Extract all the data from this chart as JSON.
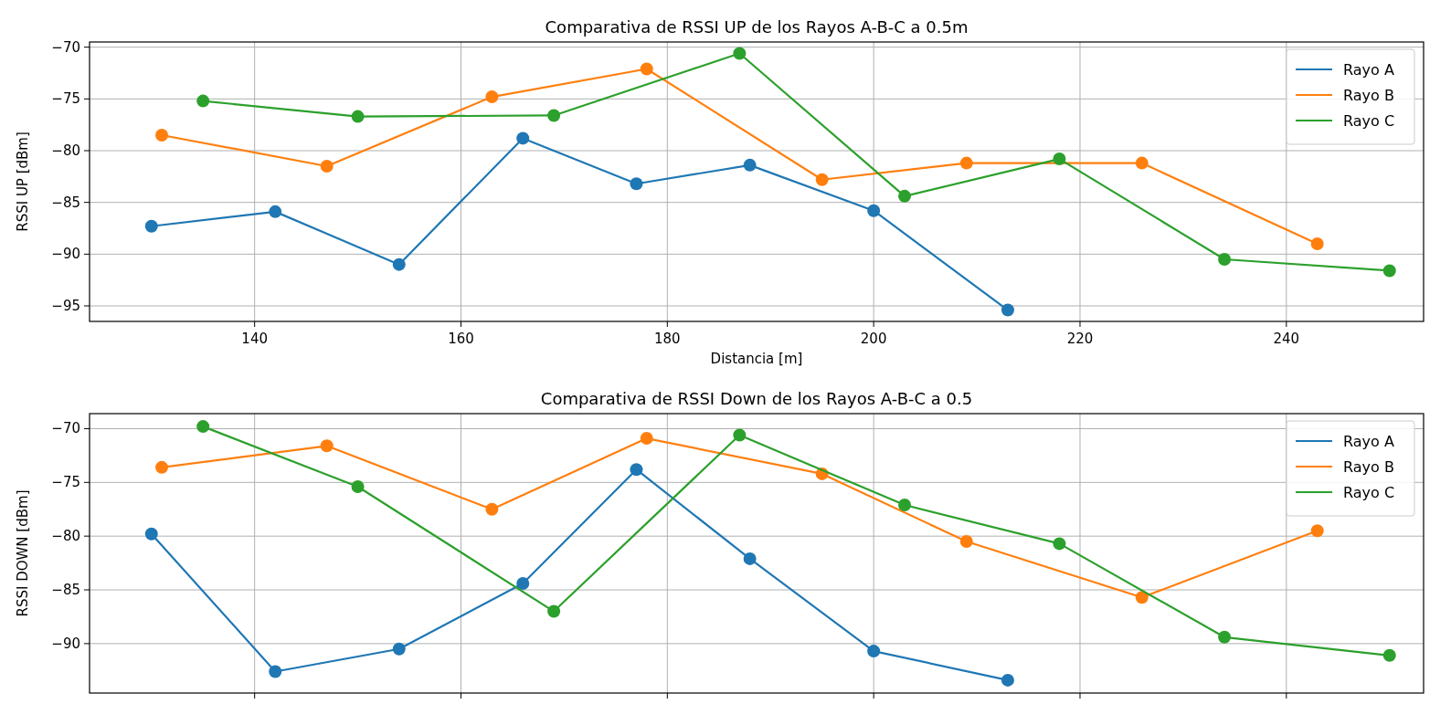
{
  "chart_data": [
    {
      "type": "line",
      "title": "Comparativa de RSSI UP de los Rayos A-B-C a 0.5m",
      "xlabel": "Distancia [m]",
      "ylabel": "RSSI UP [dBm]",
      "xlim": [
        124,
        253.3
      ],
      "xticks": [
        140,
        160,
        180,
        200,
        220,
        240
      ],
      "ylim": [
        -96.5,
        -69.5
      ],
      "yticks": [
        -95,
        -90,
        -85,
        -80,
        -75,
        -70
      ],
      "grid": true,
      "legend": "top right",
      "marker": "circle",
      "series": [
        {
          "name": "Rayo A",
          "color": "#1f77b4",
          "x": [
            130,
            142,
            154,
            166,
            177,
            188,
            200,
            213
          ],
          "values": [
            -87.3,
            -85.9,
            -91.0,
            -78.8,
            -83.2,
            -81.4,
            -85.8,
            -95.4
          ]
        },
        {
          "name": "Rayo B",
          "color": "#ff7f0e",
          "x": [
            131,
            147,
            163,
            178,
            195,
            209,
            226,
            243
          ],
          "values": [
            -78.5,
            -81.5,
            -74.8,
            -72.1,
            -82.8,
            -81.2,
            -81.2,
            -89.0
          ]
        },
        {
          "name": "Rayo C",
          "color": "#2ca02c",
          "x": [
            135,
            150,
            169,
            187,
            203,
            218,
            234,
            250
          ],
          "values": [
            -75.2,
            -76.7,
            -76.6,
            -70.6,
            -84.4,
            -80.8,
            -90.5,
            -91.6
          ]
        }
      ]
    },
    {
      "type": "line",
      "title": "Comparativa de RSSI Down de los Rayos A-B-C a 0.5",
      "ylabel": "RSSI DOWN [dBm]",
      "xlim": [
        124,
        253.3
      ],
      "xticks": [
        {
          "value": 140,
          "label": null
        },
        {
          "value": 160,
          "label": null
        },
        {
          "value": 180,
          "label": null
        },
        {
          "value": 200,
          "label": null
        },
        {
          "value": 220,
          "label": null
        },
        {
          "value": 240,
          "label": null
        }
      ],
      "ylim": [
        -94.6,
        -68.6
      ],
      "yticks": [
        -90,
        -85,
        -80,
        -75,
        -70
      ],
      "tick_labels": "y",
      "grid": true,
      "legend": "top right",
      "marker": "circle",
      "series": [
        {
          "name": "Rayo A",
          "color": "#1f77b4",
          "x": [
            130,
            142,
            154,
            166,
            177,
            188,
            200,
            213
          ],
          "values": [
            -79.8,
            -92.6,
            -90.5,
            -84.4,
            -73.8,
            -82.1,
            -90.7,
            -93.4
          ]
        },
        {
          "name": "Rayo B",
          "color": "#ff7f0e",
          "x": [
            131,
            147,
            163,
            178,
            195,
            209,
            226,
            243
          ],
          "values": [
            -73.6,
            -71.6,
            -77.5,
            -70.9,
            -74.2,
            -80.5,
            -85.7,
            -79.5
          ]
        },
        {
          "name": "Rayo C",
          "color": "#2ca02c",
          "x": [
            135,
            150,
            169,
            187,
            203,
            218,
            234,
            250
          ],
          "values": [
            -69.8,
            -75.4,
            -87.0,
            -70.6,
            -77.1,
            -80.7,
            -89.4,
            -91.1
          ]
        }
      ]
    }
  ]
}
